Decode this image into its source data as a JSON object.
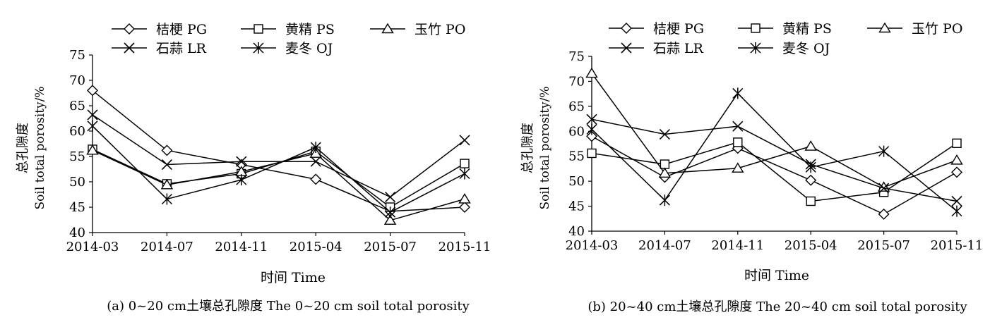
{
  "figure": {
    "xlabel": "时间 Time",
    "ylabel_cn": "总孔隙度",
    "ylabel_en": "Soil total porosity/%"
  },
  "series_styles": {
    "桔梗 PG": "diamond",
    "黄精 PS": "square",
    "玉竹 PO": "triangle",
    "石蒜 LR": "x",
    "麦冬 OJ": "star"
  },
  "legend_order": [
    "桔梗 PG",
    "黄精 PS",
    "玉竹 PO",
    "石蒜 LR",
    "麦冬 OJ"
  ],
  "chart_data": [
    {
      "type": "line",
      "title": "(a) 0~20 cm土壤总孔隙度  The 0~20 cm soil total porosity",
      "xlabel": "时间 Time",
      "ylabel": "总孔隙度 Soil total porosity/%",
      "categories": [
        "2014-03",
        "2014-07",
        "2014-11",
        "2015-04",
        "2015-07",
        "2015-11"
      ],
      "ylim": [
        40,
        75
      ],
      "yticks": [
        40,
        45,
        50,
        55,
        60,
        65,
        70,
        75
      ],
      "series": [
        {
          "name": "桔梗 PG",
          "values": [
            68,
            56.2,
            53.4,
            50.5,
            44.2,
            45
          ]
        },
        {
          "name": "黄精 PS",
          "values": [
            56.4,
            49.6,
            51.6,
            56,
            45,
            53.6
          ]
        },
        {
          "name": "玉竹 PO",
          "values": [
            56.2,
            49.4,
            52,
            55.6,
            42.4,
            46.6
          ]
        },
        {
          "name": "石蒜 LR",
          "values": [
            63.2,
            53.4,
            54,
            54,
            47,
            58.2
          ]
        },
        {
          "name": "麦冬 OJ",
          "values": [
            61,
            46.6,
            50.4,
            56.8,
            44,
            51.6
          ]
        }
      ]
    },
    {
      "type": "line",
      "title": "(b) 20~40 cm土壤总孔隙度  The 20~40 cm soil total porosity",
      "xlabel": "时间 Time",
      "ylabel": "总孔隙度 Soil total porosity/%",
      "categories": [
        "2014-03",
        "2014-07",
        "2014-11",
        "2015-04",
        "2015-07",
        "2015-11"
      ],
      "ylim": [
        40,
        75
      ],
      "yticks": [
        40,
        45,
        50,
        55,
        60,
        65,
        70,
        75
      ],
      "series": [
        {
          "name": "桔梗 PG",
          "values": [
            59,
            50.8,
            56.6,
            50.2,
            43.4,
            51.8
          ]
        },
        {
          "name": "黄精 PS",
          "values": [
            55.6,
            53.4,
            57.8,
            46,
            47.8,
            57.6
          ]
        },
        {
          "name": "玉竹 PO",
          "values": [
            71.6,
            51.6,
            52.6,
            57,
            48.8,
            54.2
          ]
        },
        {
          "name": "石蒜 LR",
          "values": [
            62.4,
            59.4,
            61,
            53.4,
            48.6,
            46
          ]
        },
        {
          "name": "麦冬 OJ",
          "values": [
            60.4,
            46.2,
            67.6,
            52.8,
            56,
            44
          ]
        }
      ]
    }
  ]
}
